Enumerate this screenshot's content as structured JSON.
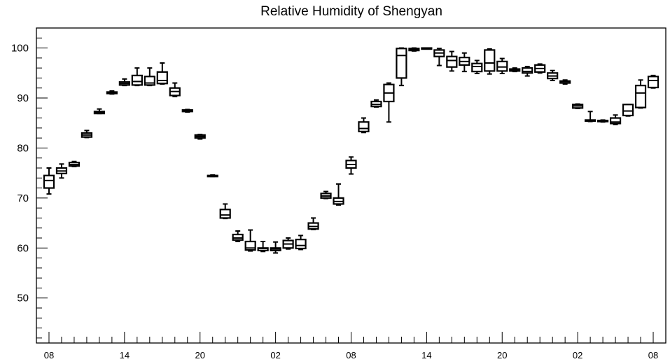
{
  "chart_data": {
    "type": "box",
    "title": "Relative Humidity of Shengyan",
    "xlabel": "",
    "ylabel": "",
    "ylim": [
      41,
      104
    ],
    "yticks": [
      50,
      60,
      70,
      80,
      90,
      100
    ],
    "x_tick_labels": [
      "08",
      "14",
      "20",
      "02",
      "08",
      "14",
      "20",
      "02",
      "08"
    ],
    "x_tick_hours": [
      0,
      6,
      12,
      18,
      24,
      30,
      36,
      42,
      48
    ],
    "x_range_hours": [
      -1,
      49
    ],
    "grid": false,
    "box_color": "#000000",
    "boxes": [
      {
        "hour": 0,
        "min": 70.8,
        "q1": 72.0,
        "median": 73.5,
        "q3": 74.5,
        "max": 76.0
      },
      {
        "hour": 1,
        "min": 74.0,
        "q1": 74.9,
        "median": 75.4,
        "q3": 76.0,
        "max": 76.8
      },
      {
        "hour": 2,
        "min": 76.3,
        "q1": 76.4,
        "median": 76.7,
        "q3": 77.1,
        "max": 77.3
      },
      {
        "hour": 3,
        "min": 82.1,
        "q1": 82.2,
        "median": 82.6,
        "q3": 83.0,
        "max": 83.5
      },
      {
        "hour": 4,
        "min": 86.9,
        "q1": 86.9,
        "median": 87.2,
        "q3": 87.3,
        "max": 87.8
      },
      {
        "hour": 5,
        "min": 90.8,
        "q1": 90.9,
        "median": 91.0,
        "q3": 91.2,
        "max": 91.4
      },
      {
        "hour": 6,
        "min": 92.5,
        "q1": 92.6,
        "median": 92.9,
        "q3": 93.2,
        "max": 93.8
      },
      {
        "hour": 7,
        "min": 92.5,
        "q1": 92.6,
        "median": 93.3,
        "q3": 94.5,
        "max": 96.0
      },
      {
        "hour": 8,
        "min": 92.5,
        "q1": 92.6,
        "median": 93.0,
        "q3": 94.3,
        "max": 96.0
      },
      {
        "hour": 9,
        "min": 92.8,
        "q1": 92.9,
        "median": 93.5,
        "q3": 95.2,
        "max": 97.0
      },
      {
        "hour": 10,
        "min": 90.3,
        "q1": 90.5,
        "median": 91.3,
        "q3": 92.0,
        "max": 93.0
      },
      {
        "hour": 11,
        "min": 87.2,
        "q1": 87.3,
        "median": 87.5,
        "q3": 87.6,
        "max": 87.7
      },
      {
        "hour": 12,
        "min": 81.8,
        "q1": 82.0,
        "median": 82.3,
        "q3": 82.6,
        "max": 82.7
      },
      {
        "hour": 13,
        "min": 74.3,
        "q1": 74.3,
        "median": 74.4,
        "q3": 74.5,
        "max": 74.6
      },
      {
        "hour": 14,
        "min": 65.9,
        "q1": 66.0,
        "median": 66.6,
        "q3": 67.7,
        "max": 68.8
      },
      {
        "hour": 15,
        "min": 61.3,
        "q1": 61.6,
        "median": 62.0,
        "q3": 62.7,
        "max": 63.4
      },
      {
        "hour": 16,
        "min": 59.4,
        "q1": 59.6,
        "median": 60.0,
        "q3": 61.3,
        "max": 63.6
      },
      {
        "hour": 17,
        "min": 59.3,
        "q1": 59.5,
        "median": 59.9,
        "q3": 60.0,
        "max": 61.3
      },
      {
        "hour": 18,
        "min": 59.0,
        "q1": 59.5,
        "median": 59.8,
        "q3": 60.0,
        "max": 61.2
      },
      {
        "hour": 19,
        "min": 59.8,
        "q1": 60.0,
        "median": 60.8,
        "q3": 61.5,
        "max": 62.0
      },
      {
        "hour": 20,
        "min": 59.7,
        "q1": 59.9,
        "median": 60.5,
        "q3": 61.7,
        "max": 62.5
      },
      {
        "hour": 21,
        "min": 63.7,
        "q1": 63.8,
        "median": 64.3,
        "q3": 65.0,
        "max": 66.0
      },
      {
        "hour": 22,
        "min": 69.9,
        "q1": 70.0,
        "median": 70.4,
        "q3": 70.9,
        "max": 71.3
      },
      {
        "hour": 23,
        "min": 68.6,
        "q1": 68.8,
        "median": 69.3,
        "q3": 70.0,
        "max": 72.8
      },
      {
        "hour": 24,
        "min": 74.8,
        "q1": 76.0,
        "median": 76.7,
        "q3": 77.5,
        "max": 78.2
      },
      {
        "hour": 25,
        "min": 83.1,
        "q1": 83.3,
        "median": 83.9,
        "q3": 85.2,
        "max": 86.0
      },
      {
        "hour": 26,
        "min": 88.2,
        "q1": 88.3,
        "median": 88.7,
        "q3": 89.3,
        "max": 89.6
      },
      {
        "hour": 27,
        "min": 85.2,
        "q1": 89.3,
        "median": 91.0,
        "q3": 92.7,
        "max": 93.0
      },
      {
        "hour": 28,
        "min": 92.5,
        "q1": 94.0,
        "median": 98.5,
        "q3": 99.9,
        "max": 100.0
      },
      {
        "hour": 29,
        "min": 99.4,
        "q1": 99.5,
        "median": 99.7,
        "q3": 99.9,
        "max": 100.0
      },
      {
        "hour": 30,
        "min": 99.8,
        "q1": 99.8,
        "median": 99.9,
        "q3": 100.0,
        "max": 100.0
      },
      {
        "hour": 31,
        "min": 96.5,
        "q1": 98.3,
        "median": 99.0,
        "q3": 99.6,
        "max": 99.9
      },
      {
        "hour": 32,
        "min": 95.4,
        "q1": 96.2,
        "median": 97.5,
        "q3": 98.3,
        "max": 99.3
      },
      {
        "hour": 33,
        "min": 95.3,
        "q1": 96.6,
        "median": 97.3,
        "q3": 98.1,
        "max": 99.0
      },
      {
        "hour": 34,
        "min": 94.9,
        "q1": 95.3,
        "median": 96.3,
        "q3": 96.9,
        "max": 97.5
      },
      {
        "hour": 35,
        "min": 94.8,
        "q1": 95.4,
        "median": 97.0,
        "q3": 99.6,
        "max": 99.8
      },
      {
        "hour": 36,
        "min": 94.9,
        "q1": 95.4,
        "median": 96.2,
        "q3": 97.3,
        "max": 97.9
      },
      {
        "hour": 37,
        "min": 95.3,
        "q1": 95.4,
        "median": 95.6,
        "q3": 95.8,
        "max": 96.0
      },
      {
        "hour": 38,
        "min": 94.4,
        "q1": 95.0,
        "median": 95.3,
        "q3": 96.0,
        "max": 96.3
      },
      {
        "hour": 39,
        "min": 95.0,
        "q1": 95.2,
        "median": 95.9,
        "q3": 96.6,
        "max": 96.8
      },
      {
        "hour": 40,
        "min": 93.5,
        "q1": 93.9,
        "median": 94.4,
        "q3": 95.0,
        "max": 95.5
      },
      {
        "hour": 41,
        "min": 92.8,
        "q1": 93.0,
        "median": 93.3,
        "q3": 93.4,
        "max": 93.6
      },
      {
        "hour": 42,
        "min": 87.9,
        "q1": 88.0,
        "median": 88.4,
        "q3": 88.7,
        "max": 88.8
      },
      {
        "hour": 43,
        "min": 85.3,
        "q1": 85.4,
        "median": 85.5,
        "q3": 85.6,
        "max": 87.3
      },
      {
        "hour": 44,
        "min": 85.2,
        "q1": 85.3,
        "median": 85.4,
        "q3": 85.5,
        "max": 85.6
      },
      {
        "hour": 45,
        "min": 84.7,
        "q1": 84.9,
        "median": 85.2,
        "q3": 86.0,
        "max": 86.6
      },
      {
        "hour": 46,
        "min": 86.4,
        "q1": 86.5,
        "median": 87.4,
        "q3": 88.7,
        "max": 88.7
      },
      {
        "hour": 47,
        "min": 88.0,
        "q1": 88.1,
        "median": 91.0,
        "q3": 92.5,
        "max": 93.6
      },
      {
        "hour": 48,
        "min": 92.0,
        "q1": 92.1,
        "median": 93.5,
        "q3": 94.3,
        "max": 94.5
      }
    ]
  }
}
